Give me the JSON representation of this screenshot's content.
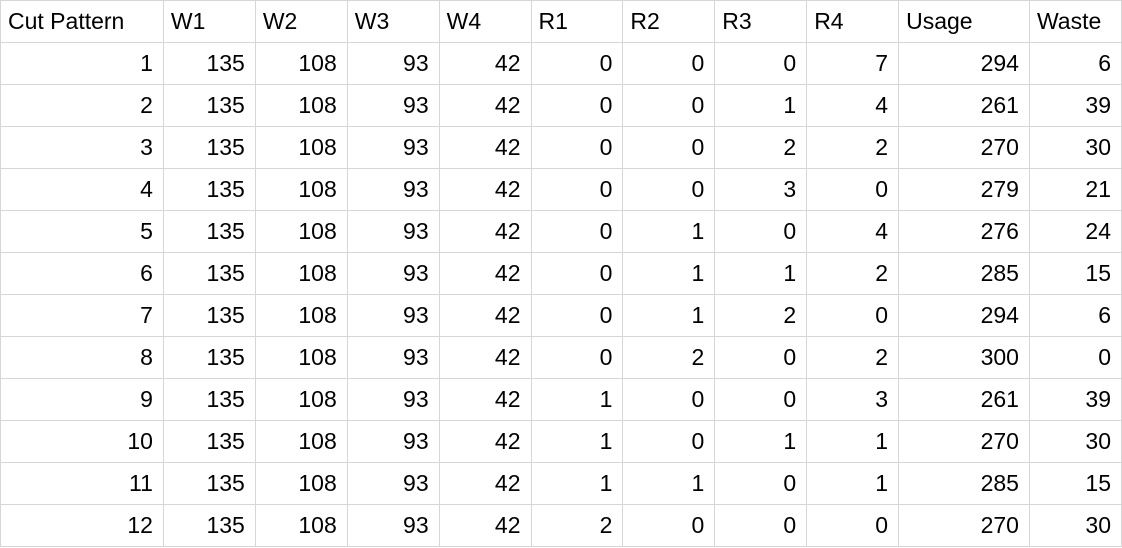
{
  "sheet": {
    "headers": [
      "Cut Pattern",
      "W1",
      "W2",
      "W3",
      "W4",
      "R1",
      "R2",
      "R3",
      "R4",
      "Usage",
      "Waste"
    ],
    "rows": [
      [
        "1",
        "135",
        "108",
        "93",
        "42",
        "0",
        "0",
        "0",
        "7",
        "294",
        "6"
      ],
      [
        "2",
        "135",
        "108",
        "93",
        "42",
        "0",
        "0",
        "1",
        "4",
        "261",
        "39"
      ],
      [
        "3",
        "135",
        "108",
        "93",
        "42",
        "0",
        "0",
        "2",
        "2",
        "270",
        "30"
      ],
      [
        "4",
        "135",
        "108",
        "93",
        "42",
        "0",
        "0",
        "3",
        "0",
        "279",
        "21"
      ],
      [
        "5",
        "135",
        "108",
        "93",
        "42",
        "0",
        "1",
        "0",
        "4",
        "276",
        "24"
      ],
      [
        "6",
        "135",
        "108",
        "93",
        "42",
        "0",
        "1",
        "1",
        "2",
        "285",
        "15"
      ],
      [
        "7",
        "135",
        "108",
        "93",
        "42",
        "0",
        "1",
        "2",
        "0",
        "294",
        "6"
      ],
      [
        "8",
        "135",
        "108",
        "93",
        "42",
        "0",
        "2",
        "0",
        "2",
        "300",
        "0"
      ],
      [
        "9",
        "135",
        "108",
        "93",
        "42",
        "1",
        "0",
        "0",
        "3",
        "261",
        "39"
      ],
      [
        "10",
        "135",
        "108",
        "93",
        "42",
        "1",
        "0",
        "1",
        "1",
        "270",
        "30"
      ],
      [
        "11",
        "135",
        "108",
        "93",
        "42",
        "1",
        "1",
        "0",
        "1",
        "285",
        "15"
      ],
      [
        "12",
        "135",
        "108",
        "93",
        "42",
        "2",
        "0",
        "0",
        "0",
        "270",
        "30"
      ]
    ]
  },
  "colors": {
    "gridline": "#d6d6d6",
    "text": "#000000",
    "background": "#ffffff"
  }
}
